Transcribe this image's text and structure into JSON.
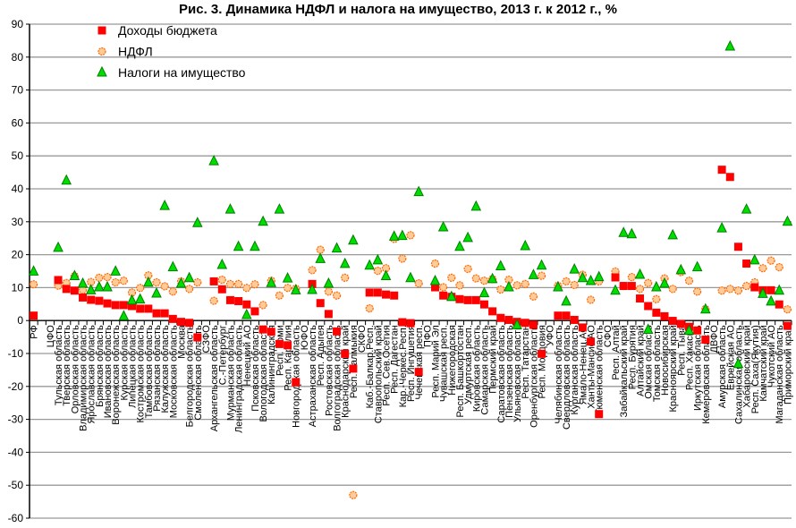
{
  "chart_data": {
    "type": "scatter",
    "title": "Рис. 3. Динамика НДФЛ и налога на имущество, 2013 г. к 2012 г., %",
    "xlabel": "",
    "ylabel": "",
    "ylim": [
      -60,
      90
    ],
    "yticks": [
      90,
      80,
      70,
      60,
      50,
      40,
      30,
      20,
      10,
      0,
      -10,
      -20,
      -30,
      -40,
      -50,
      -60
    ],
    "grid": true,
    "legend_position": "top-left",
    "categories": [
      "РФ",
      "ЦФО",
      "Тульская область",
      "Тверская область",
      "Орловская область",
      "Владимирская область",
      "Ярославская область",
      "Брянская область",
      "Ивановская область",
      "Воронежская область",
      "Курская область",
      "Липецкая область",
      "Костромская область",
      "Тамбовская область",
      "Рязанская область",
      "Калужская область",
      "Московская область",
      "Москва",
      "Белгородская область",
      "Смоленская область",
      "СЗФО",
      "Архангельская область",
      "С.-Петербург",
      "Мурманская область",
      "Ленинградская область",
      "Ненецкий АО",
      "Псковская область",
      "Вологодская область",
      "Калининградская",
      "Респ. Коми",
      "Респ. Карелия",
      "Новгородская область",
      "ЮФО",
      "Астраханская область",
      "Респ. Адыгея",
      "Ростовская область",
      "Волгоградская область",
      "Краснодарский край",
      "Респ. Калмыкия",
      "СКФО",
      "Каб.-Балкар.Респ.",
      "Ставропольский край",
      "Респ. Сев.Осетия",
      "Респ. Дагестан",
      "Кар.-Черкес.Респ.",
      "Респ. Ингушетия",
      "Чеченская респ.",
      "ПФО",
      "Респ. Марий Эл",
      "Чувашская респ.",
      "Нижегородская",
      "Респ. Башкортостан",
      "Удмуртская респ.",
      "Кировская область",
      "Самарская область",
      "Пермский край",
      "Саратовская область",
      "Пензенская область",
      "Ульяновская область",
      "Респ. Татарстан",
      "Оренбургская область",
      "Респ. Мордовия",
      "УФО",
      "Челябинская область",
      "Свердловская область",
      "Курганская область",
      "Ямало-Ненец.АО",
      "Ханты-Мансис.АО",
      "Тюменская область",
      "СФО",
      "Респ. Алтай",
      "Забайкальский край",
      "Респ. Бурятия",
      "Алтайский край",
      "Омская область",
      "Томская область",
      "Новосибирская",
      "Красноярский край",
      "Респ. Тыва",
      "Респ. Хакасия",
      "Иркутская область",
      "Кемеровская область",
      "ДВФО",
      "Амурская область",
      "Еврейская АО",
      "Сахалинская область",
      "Хабаровский край",
      "Респ. Саха(Якутия)",
      "Камчатский край",
      "Чукотский АО",
      "Магаданская область",
      "Приморский край"
    ],
    "series": [
      {
        "name": "Доходы бюджета",
        "marker": "square",
        "color": "#FF0000",
        "values": [
          1.5,
          null,
          12.3,
          9.6,
          9.1,
          7,
          6.3,
          6,
          5.2,
          4.7,
          4.7,
          4.4,
          3.6,
          3.6,
          2.2,
          2.2,
          0.5,
          -0.4,
          -0.7,
          -5.1,
          null,
          11.9,
          9.5,
          6.2,
          5.9,
          4.9,
          2.8,
          -2.7,
          -3.4,
          -7.1,
          -7.5,
          -18.7,
          null,
          11.1,
          5.3,
          2,
          -3.3,
          -10.1,
          -14.6,
          null,
          8.5,
          8.5,
          7.9,
          7.6,
          -0.5,
          -0.8,
          -15.6,
          null,
          10.1,
          7.6,
          7.2,
          6.5,
          6.2,
          6.2,
          4.9,
          2.8,
          0.8,
          0.2,
          -0.4,
          -0.7,
          -1.3,
          -10.1,
          null,
          1.5,
          1.5,
          0.2,
          -2.1,
          -6.4,
          -28.4,
          null,
          13.1,
          10.5,
          10.5,
          6.7,
          4.4,
          2.4,
          1.3,
          -0.1,
          -1,
          -1.9,
          -3,
          -5.8,
          null,
          45.8,
          43.6,
          22.4,
          17.3,
          10.1,
          9.2,
          9.2,
          4.9,
          -1.6
        ]
      },
      {
        "name": "НДФЛ",
        "marker": "circle",
        "color": "#FFCC99",
        "edge": "#FF6600",
        "values": [
          11,
          null,
          10.6,
          11.4,
          13.5,
          9.3,
          11.7,
          13,
          13.2,
          11.6,
          12.1,
          8.5,
          9.9,
          13.7,
          11.6,
          10.4,
          8.8,
          11.9,
          9.6,
          11.6,
          null,
          6,
          12.4,
          11.1,
          11.1,
          9.9,
          11,
          4.7,
          12.1,
          7.6,
          9.9,
          9.7,
          null,
          15.3,
          21.5,
          8.8,
          7.6,
          13,
          -53,
          null,
          3.7,
          15.1,
          15.9,
          24.8,
          18.8,
          25.9,
          11.3,
          null,
          17.3,
          10.1,
          13,
          10.7,
          15.7,
          12.8,
          12.1,
          12.6,
          9.4,
          12.4,
          10.7,
          11.1,
          7.3,
          13.6,
          null,
          10.6,
          11.9,
          10.8,
          13.9,
          6.3,
          11.9,
          null,
          14.9,
          10.5,
          13.2,
          9.6,
          11.4,
          6.5,
          12.8,
          9.6,
          14.7,
          12.1,
          8.8,
          3.5,
          null,
          9.1,
          9.6,
          9.1,
          10.5,
          11.6,
          15.9,
          18.2,
          16.2,
          3.4
        ]
      },
      {
        "name": "Налоги на имущество",
        "marker": "triangle",
        "color": "#00DD00",
        "edge": "#008000",
        "values": [
          14.9,
          null,
          22.1,
          42.5,
          13.5,
          11.2,
          9.2,
          10.1,
          10.1,
          14.9,
          1.3,
          6.1,
          6.4,
          11.5,
          8.2,
          34.8,
          16.2,
          11.2,
          12.9,
          29.6,
          null,
          48.4,
          16.9,
          33.7,
          22.4,
          1.7,
          22.4,
          30,
          11.4,
          33.7,
          12.8,
          9.2,
          null,
          9.3,
          18.7,
          11.2,
          21.9,
          17.2,
          24.3,
          null,
          16.7,
          18.3,
          13.5,
          25.5,
          25.7,
          12.9,
          39,
          null,
          12,
          28.3,
          7.2,
          22.4,
          25.1,
          34.6,
          8.3,
          12.6,
          16.5,
          10.1,
          -1.4,
          22.6,
          13.8,
          16.7,
          null,
          10.1,
          5.8,
          15.5,
          12.9,
          12,
          13.2,
          null,
          9.1,
          26.6,
          26.2,
          13.9,
          -2.8,
          10.1,
          11.2,
          25.9,
          15.3,
          -3.1,
          16.2,
          3.4,
          null,
          28,
          83.2,
          -13.2,
          33.7,
          18.3,
          8.1,
          5.8,
          9.1,
          30
        ]
      }
    ]
  }
}
